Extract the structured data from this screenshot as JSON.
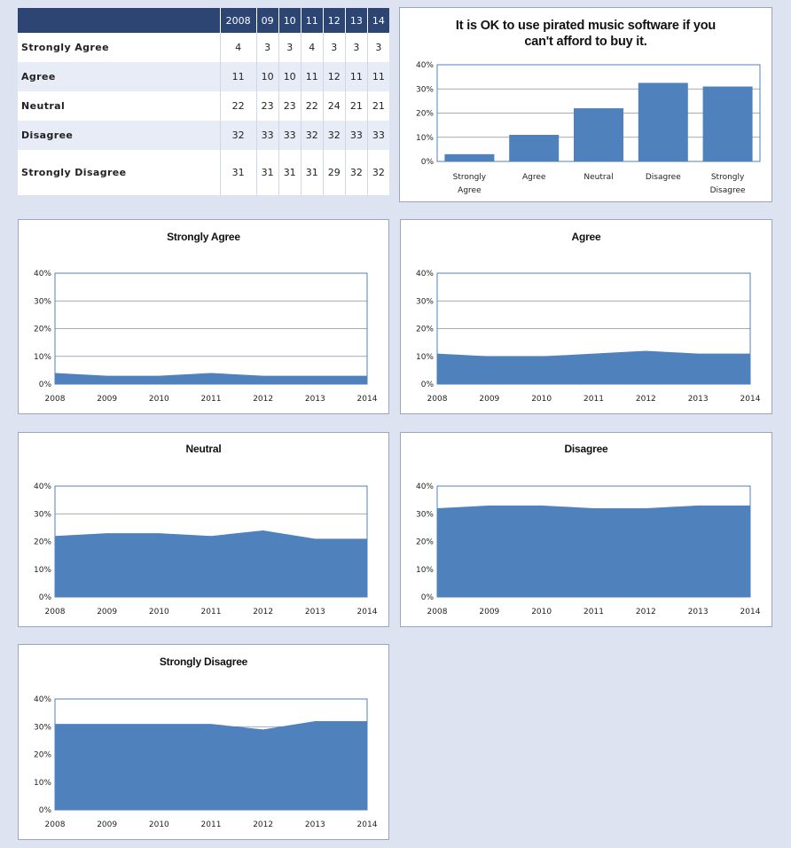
{
  "table": {
    "header": [
      "2008",
      "09",
      "10",
      "11",
      "12",
      "13",
      "14"
    ],
    "rows": [
      {
        "label": "Strongly Agree",
        "values": [
          "4",
          "3",
          "3",
          "4",
          "3",
          "3",
          "3"
        ]
      },
      {
        "label": "Agree",
        "values": [
          "11",
          "10",
          "10",
          "11",
          "12",
          "11",
          "11"
        ]
      },
      {
        "label": "Neutral",
        "values": [
          "22",
          "23",
          "23",
          "22",
          "24",
          "21",
          "21"
        ]
      },
      {
        "label": "Disagree",
        "values": [
          "32",
          "33",
          "33",
          "32",
          "32",
          "33",
          "33"
        ]
      },
      {
        "label": "Strongly Disagree",
        "values": [
          "31",
          "31",
          "31",
          "31",
          "29",
          "32",
          "32"
        ]
      }
    ]
  },
  "colors": {
    "series": "#4f81bd",
    "header": "#2d4573",
    "background": "#dde3f0"
  },
  "chart_data": [
    {
      "type": "bar",
      "title_lines": [
        "It is OK to use pirated music software if you",
        "can't afford to buy it."
      ],
      "categories": [
        "Strongly Agree",
        "Agree",
        "Neutral",
        "Disagree",
        "Strongly Disagree"
      ],
      "category_lines": [
        [
          "Strongly",
          "Agree"
        ],
        [
          "Agree"
        ],
        [
          "Neutral"
        ],
        [
          "Disagree"
        ],
        [
          "Strongly",
          "Disagree"
        ]
      ],
      "values": [
        3,
        11,
        22,
        32.5,
        31
      ],
      "ylim": [
        0,
        40
      ],
      "yticks": [
        "0%",
        "10%",
        "20%",
        "30%",
        "40%"
      ],
      "grid": true
    },
    {
      "type": "area",
      "title": "Strongly Agree",
      "x": [
        "2008",
        "2009",
        "2010",
        "2011",
        "2012",
        "2013",
        "2014"
      ],
      "values": [
        4,
        3,
        3,
        4,
        3,
        3,
        3
      ],
      "ylim": [
        0,
        40
      ],
      "yticks": [
        "0%",
        "10%",
        "20%",
        "30%",
        "40%"
      ],
      "grid": true
    },
    {
      "type": "area",
      "title": "Agree",
      "x": [
        "2008",
        "2009",
        "2010",
        "2011",
        "2012",
        "2013",
        "2014"
      ],
      "values": [
        11,
        10,
        10,
        11,
        12,
        11,
        11
      ],
      "ylim": [
        0,
        40
      ],
      "yticks": [
        "0%",
        "10%",
        "20%",
        "30%",
        "40%"
      ],
      "grid": true
    },
    {
      "type": "area",
      "title": "Neutral",
      "x": [
        "2008",
        "2009",
        "2010",
        "2011",
        "2012",
        "2013",
        "2014"
      ],
      "values": [
        22,
        23,
        23,
        22,
        24,
        21,
        21
      ],
      "ylim": [
        0,
        40
      ],
      "yticks": [
        "0%",
        "10%",
        "20%",
        "30%",
        "40%"
      ],
      "grid": true
    },
    {
      "type": "area",
      "title": "Disagree",
      "x": [
        "2008",
        "2009",
        "2010",
        "2011",
        "2012",
        "2013",
        "2014"
      ],
      "values": [
        32,
        33,
        33,
        32,
        32,
        33,
        33
      ],
      "ylim": [
        0,
        40
      ],
      "yticks": [
        "0%",
        "10%",
        "20%",
        "30%",
        "40%"
      ],
      "grid": true
    },
    {
      "type": "area",
      "title": "Strongly Disagree",
      "x": [
        "2008",
        "2009",
        "2010",
        "2011",
        "2012",
        "2013",
        "2014"
      ],
      "values": [
        31,
        31,
        31,
        31,
        29,
        32,
        32
      ],
      "ylim": [
        0,
        40
      ],
      "yticks": [
        "0%",
        "10%",
        "20%",
        "30%",
        "40%"
      ],
      "grid": true
    }
  ]
}
